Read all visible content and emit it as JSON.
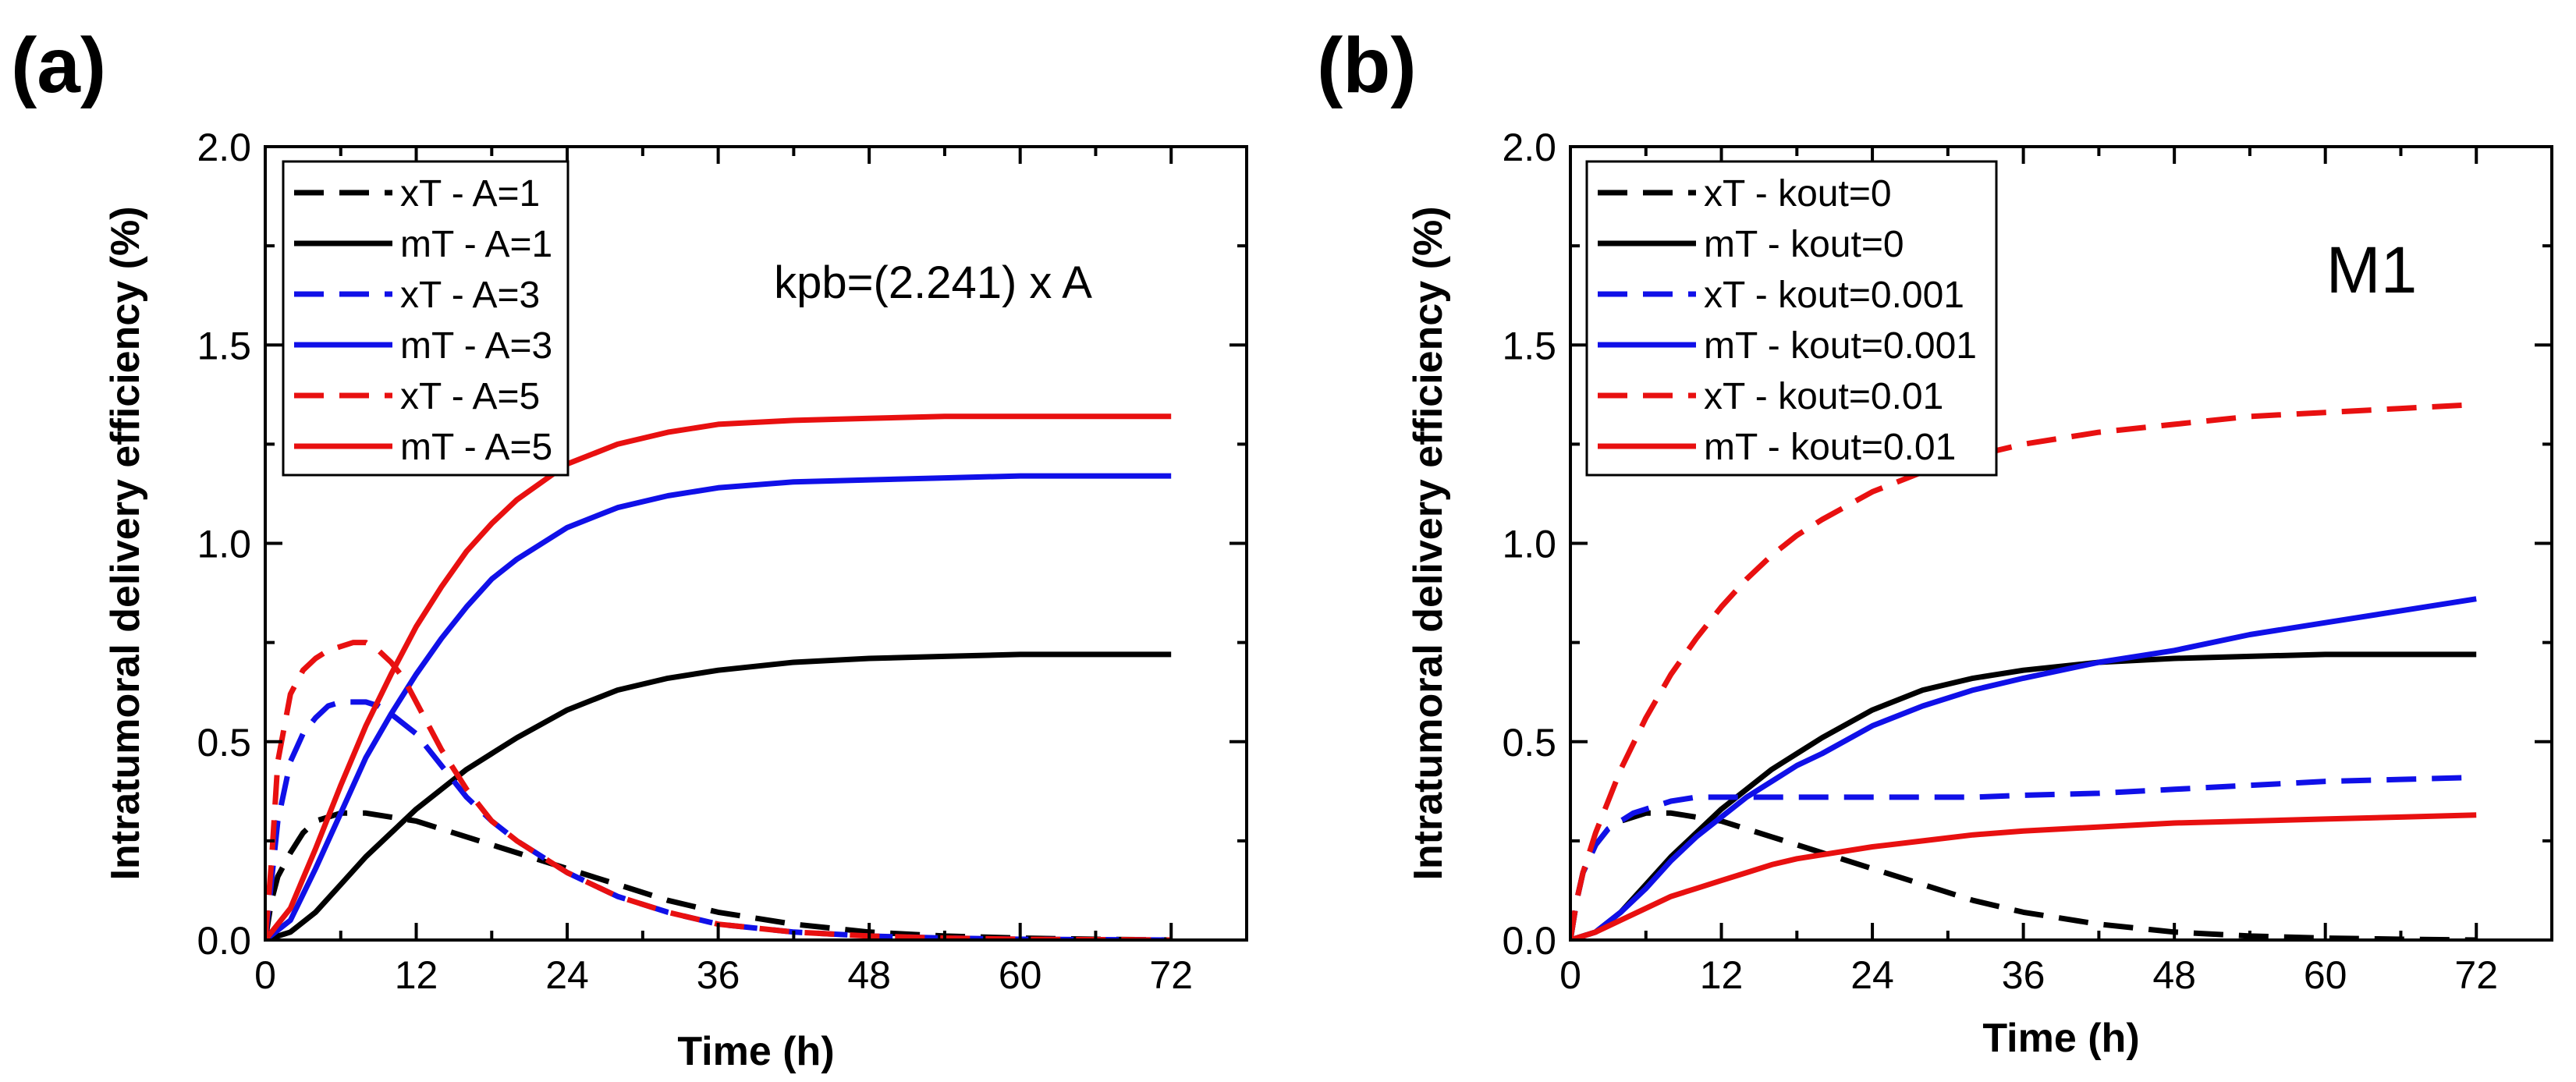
{
  "chart_data": [
    {
      "type": "line",
      "panel_label": "(a)",
      "annotation": "kpb=(2.241) x A",
      "xlabel": "Time (h)",
      "ylabel": "Intratumoral delivery efficiency (%)",
      "xlim": [
        0,
        78
      ],
      "ylim": [
        0,
        2.0
      ],
      "xticks": [
        0,
        12,
        24,
        36,
        48,
        60,
        72
      ],
      "yticks": [
        0.0,
        0.5,
        1.0,
        1.5,
        2.0
      ],
      "xtick_labels": [
        "0",
        "12",
        "24",
        "36",
        "48",
        "60",
        "72"
      ],
      "ytick_labels": [
        "0.0",
        "0.5",
        "1.0",
        "1.5",
        "2.0"
      ],
      "legend_position": "top-left",
      "series": [
        {
          "name": "xT - A=1",
          "color": "#000000",
          "dash": "dashed",
          "x": [
            0,
            0.5,
            1,
            2,
            3,
            4,
            5,
            6,
            8,
            10,
            12,
            16,
            20,
            24,
            28,
            32,
            36,
            42,
            48,
            54,
            60,
            66,
            72
          ],
          "y": [
            0,
            0.1,
            0.16,
            0.22,
            0.27,
            0.3,
            0.31,
            0.32,
            0.32,
            0.31,
            0.3,
            0.26,
            0.22,
            0.18,
            0.14,
            0.1,
            0.07,
            0.04,
            0.02,
            0.01,
            0.005,
            0.002,
            0.0
          ]
        },
        {
          "name": "mT - A=1",
          "color": "#000000",
          "dash": "solid",
          "x": [
            0,
            2,
            4,
            6,
            8,
            10,
            12,
            14,
            16,
            18,
            20,
            24,
            28,
            32,
            36,
            42,
            48,
            54,
            60,
            66,
            72
          ],
          "y": [
            0,
            0.02,
            0.07,
            0.14,
            0.21,
            0.27,
            0.33,
            0.38,
            0.43,
            0.47,
            0.51,
            0.58,
            0.63,
            0.66,
            0.68,
            0.7,
            0.71,
            0.715,
            0.72,
            0.72,
            0.72
          ]
        },
        {
          "name": "xT - A=3",
          "color": "#1010e8",
          "dash": "dashed",
          "x": [
            0,
            0.5,
            1,
            2,
            3,
            4,
            5,
            6,
            7,
            8,
            9,
            10,
            12,
            14,
            16,
            18,
            20,
            24,
            28,
            32,
            36,
            42,
            48,
            54,
            60,
            66,
            72
          ],
          "y": [
            0,
            0.15,
            0.3,
            0.45,
            0.52,
            0.56,
            0.59,
            0.6,
            0.6,
            0.6,
            0.59,
            0.57,
            0.52,
            0.44,
            0.36,
            0.3,
            0.25,
            0.17,
            0.11,
            0.07,
            0.04,
            0.02,
            0.01,
            0.005,
            0.002,
            0.001,
            0.0
          ]
        },
        {
          "name": "mT - A=3",
          "color": "#1010e8",
          "dash": "solid",
          "x": [
            0,
            2,
            4,
            6,
            8,
            10,
            12,
            14,
            16,
            18,
            20,
            24,
            28,
            32,
            36,
            42,
            48,
            54,
            60,
            66,
            72
          ],
          "y": [
            0,
            0.05,
            0.18,
            0.32,
            0.46,
            0.57,
            0.67,
            0.76,
            0.84,
            0.91,
            0.96,
            1.04,
            1.09,
            1.12,
            1.14,
            1.155,
            1.16,
            1.165,
            1.17,
            1.17,
            1.17
          ]
        },
        {
          "name": "xT - A=5",
          "color": "#e81010",
          "dash": "dashed",
          "x": [
            0,
            0.5,
            1,
            2,
            3,
            4,
            5,
            6,
            7,
            8,
            9,
            10,
            11,
            12,
            14,
            16,
            18,
            20,
            24,
            28,
            32,
            36,
            42,
            48,
            54,
            60,
            66,
            72
          ],
          "y": [
            0,
            0.2,
            0.45,
            0.62,
            0.68,
            0.71,
            0.73,
            0.74,
            0.75,
            0.75,
            0.73,
            0.7,
            0.66,
            0.6,
            0.48,
            0.38,
            0.3,
            0.25,
            0.17,
            0.11,
            0.07,
            0.04,
            0.02,
            0.01,
            0.005,
            0.002,
            0.001,
            0.0
          ]
        },
        {
          "name": "mT - A=5",
          "color": "#e81010",
          "dash": "solid",
          "x": [
            0,
            2,
            4,
            6,
            8,
            10,
            12,
            14,
            16,
            18,
            20,
            24,
            28,
            32,
            36,
            42,
            48,
            54,
            60,
            66,
            72
          ],
          "y": [
            0,
            0.08,
            0.23,
            0.39,
            0.54,
            0.67,
            0.79,
            0.89,
            0.98,
            1.05,
            1.11,
            1.2,
            1.25,
            1.28,
            1.3,
            1.31,
            1.315,
            1.32,
            1.32,
            1.32,
            1.32
          ]
        }
      ]
    },
    {
      "type": "line",
      "panel_label": "(b)",
      "annotation": "M1",
      "xlabel": "Time (h)",
      "ylabel": "Intratumoral delivery efficiency (%)",
      "xlim": [
        0,
        78
      ],
      "ylim": [
        0,
        2.0
      ],
      "xticks": [
        0,
        12,
        24,
        36,
        48,
        60,
        72
      ],
      "yticks": [
        0.0,
        0.5,
        1.0,
        1.5,
        2.0
      ],
      "xtick_labels": [
        "0",
        "12",
        "24",
        "36",
        "48",
        "60",
        "72"
      ],
      "ytick_labels": [
        "0.0",
        "0.5",
        "1.0",
        "1.5",
        "2.0"
      ],
      "legend_position": "top-left",
      "series": [
        {
          "name": "xT - kout=0",
          "color": "#000000",
          "dash": "dashed",
          "x": [
            0,
            0.5,
            1,
            2,
            3,
            4,
            5,
            6,
            8,
            10,
            12,
            16,
            20,
            24,
            28,
            32,
            36,
            42,
            48,
            54,
            60,
            66,
            72
          ],
          "y": [
            0,
            0.1,
            0.17,
            0.24,
            0.28,
            0.3,
            0.31,
            0.32,
            0.32,
            0.31,
            0.3,
            0.26,
            0.22,
            0.18,
            0.14,
            0.1,
            0.07,
            0.04,
            0.02,
            0.01,
            0.005,
            0.002,
            0.0
          ]
        },
        {
          "name": "mT - kout=0",
          "color": "#000000",
          "dash": "solid",
          "x": [
            0,
            2,
            4,
            6,
            8,
            10,
            12,
            14,
            16,
            18,
            20,
            24,
            28,
            32,
            36,
            42,
            48,
            54,
            60,
            66,
            72
          ],
          "y": [
            0,
            0.02,
            0.07,
            0.14,
            0.21,
            0.27,
            0.33,
            0.38,
            0.43,
            0.47,
            0.51,
            0.58,
            0.63,
            0.66,
            0.68,
            0.7,
            0.71,
            0.715,
            0.72,
            0.72,
            0.72
          ]
        },
        {
          "name": "xT - kout=0.001",
          "color": "#1010e8",
          "dash": "dashed",
          "x": [
            0,
            0.5,
            1,
            2,
            3,
            4,
            5,
            6,
            8,
            10,
            12,
            16,
            20,
            24,
            28,
            32,
            36,
            42,
            48,
            54,
            60,
            66,
            72
          ],
          "y": [
            0,
            0.1,
            0.17,
            0.24,
            0.28,
            0.3,
            0.32,
            0.33,
            0.35,
            0.36,
            0.36,
            0.36,
            0.36,
            0.36,
            0.36,
            0.36,
            0.365,
            0.37,
            0.38,
            0.39,
            0.4,
            0.405,
            0.41
          ]
        },
        {
          "name": "mT - kout=0.001",
          "color": "#1010e8",
          "dash": "solid",
          "x": [
            0,
            2,
            4,
            6,
            8,
            10,
            12,
            14,
            16,
            18,
            20,
            24,
            28,
            32,
            36,
            42,
            48,
            54,
            60,
            66,
            72
          ],
          "y": [
            0,
            0.02,
            0.07,
            0.13,
            0.2,
            0.26,
            0.31,
            0.36,
            0.4,
            0.44,
            0.47,
            0.54,
            0.59,
            0.63,
            0.66,
            0.7,
            0.73,
            0.77,
            0.8,
            0.83,
            0.86
          ]
        },
        {
          "name": "xT - kout=0.01",
          "color": "#e81010",
          "dash": "dashed",
          "x": [
            0,
            0.5,
            1,
            2,
            3,
            4,
            6,
            8,
            10,
            12,
            14,
            16,
            18,
            20,
            24,
            28,
            32,
            36,
            42,
            48,
            54,
            60,
            66,
            72
          ],
          "y": [
            0,
            0.1,
            0.17,
            0.27,
            0.35,
            0.43,
            0.56,
            0.67,
            0.76,
            0.84,
            0.91,
            0.97,
            1.02,
            1.06,
            1.13,
            1.18,
            1.22,
            1.25,
            1.28,
            1.3,
            1.32,
            1.33,
            1.34,
            1.35
          ]
        },
        {
          "name": "mT - kout=0.01",
          "color": "#e81010",
          "dash": "solid",
          "x": [
            0,
            2,
            4,
            6,
            8,
            10,
            12,
            14,
            16,
            18,
            20,
            24,
            28,
            32,
            36,
            42,
            48,
            54,
            60,
            66,
            72
          ],
          "y": [
            0,
            0.02,
            0.05,
            0.08,
            0.11,
            0.13,
            0.15,
            0.17,
            0.19,
            0.205,
            0.215,
            0.235,
            0.25,
            0.265,
            0.275,
            0.285,
            0.295,
            0.3,
            0.305,
            0.31,
            0.315
          ]
        }
      ]
    }
  ]
}
